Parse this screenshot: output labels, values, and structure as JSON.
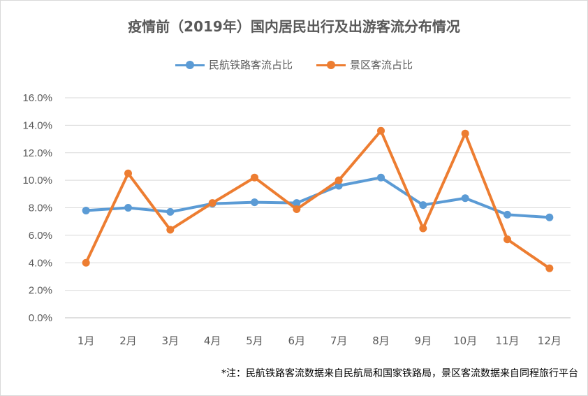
{
  "chart_data": {
    "type": "line",
    "title": "疫情前（2019年）国内居民出行及出游客流分布情况",
    "categories": [
      "1月",
      "2月",
      "3月",
      "4月",
      "5月",
      "6月",
      "7月",
      "8月",
      "9月",
      "10月",
      "11月",
      "12月"
    ],
    "y_ticks": [
      "0.0%",
      "2.0%",
      "4.0%",
      "6.0%",
      "8.0%",
      "10.0%",
      "12.0%",
      "14.0%",
      "16.0%"
    ],
    "ylim": [
      0,
      16
    ],
    "grid": true,
    "legend_position": "top",
    "series": [
      {
        "name": "民航铁路客流占比",
        "color": "#5B9BD5",
        "values": [
          7.8,
          8.0,
          7.7,
          8.3,
          8.4,
          8.35,
          9.6,
          10.2,
          8.2,
          8.7,
          7.5,
          7.3
        ]
      },
      {
        "name": "景区客流占比",
        "color": "#ED7D31",
        "values": [
          4.0,
          10.5,
          6.4,
          8.35,
          10.2,
          7.9,
          10.0,
          13.6,
          6.5,
          13.4,
          5.7,
          3.6
        ]
      }
    ],
    "note": "*注：民航铁路客流数据来自民航局和国家铁路局，景区客流数据来自同程旅行平台"
  }
}
